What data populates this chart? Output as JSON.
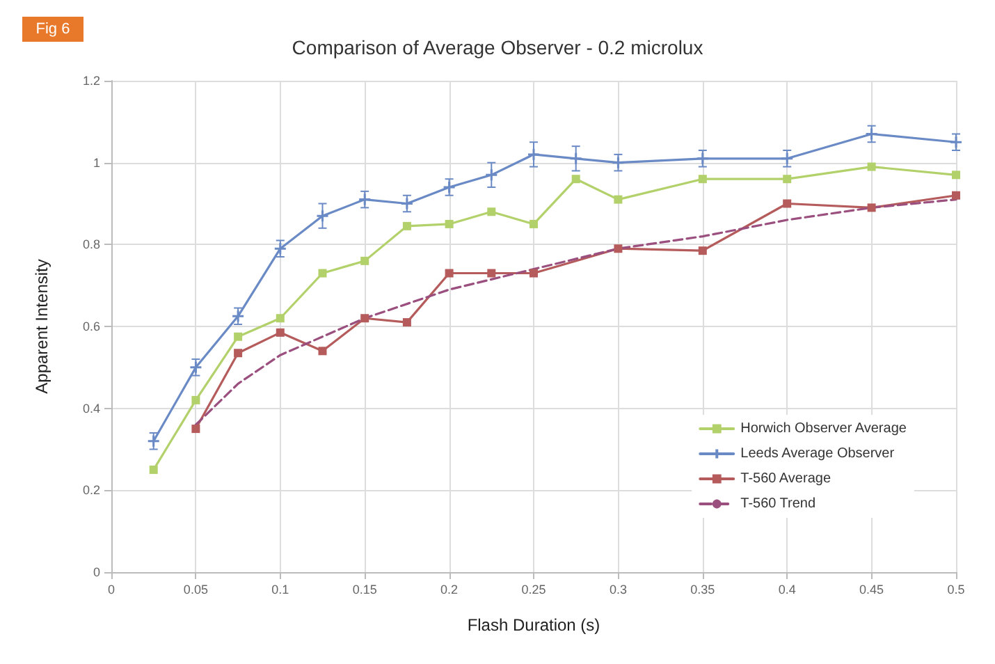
{
  "chart_data": {
    "type": "line",
    "title": "Comparison of Average Observer - 0.2 microlux",
    "xlabel": "Flash Duration (s)",
    "ylabel": "Apparent Intensity",
    "annotations": [
      "Fig 6"
    ],
    "xlim": [
      0,
      0.5
    ],
    "xticks": [
      0,
      0.05,
      0.1,
      0.15,
      0.2,
      0.25,
      0.3,
      0.35,
      0.4,
      0.45,
      0.5
    ],
    "ylim": [
      0,
      1.2
    ],
    "yticks": [
      0,
      0.2,
      0.4,
      0.6,
      0.8,
      1,
      1.2
    ],
    "grid": true,
    "legend": "right",
    "series": [
      {
        "name": "Horwich Observer Average",
        "color": "#b3d16a",
        "marker": "square",
        "x": [
          0.025,
          0.05,
          0.075,
          0.1,
          0.125,
          0.15,
          0.175,
          0.2,
          0.225,
          0.25,
          0.275,
          0.3,
          0.35,
          0.4,
          0.45,
          0.5
        ],
        "values": [
          0.25,
          0.42,
          0.575,
          0.62,
          0.73,
          0.76,
          0.845,
          0.85,
          0.88,
          0.85,
          0.96,
          0.91,
          0.96,
          0.96,
          0.99,
          0.97
        ]
      },
      {
        "name": "Leeds Average Observer",
        "color": "#6a8ac6",
        "marker": "cross",
        "x": [
          0.025,
          0.05,
          0.075,
          0.1,
          0.125,
          0.15,
          0.175,
          0.2,
          0.225,
          0.25,
          0.275,
          0.3,
          0.35,
          0.4,
          0.45,
          0.5
        ],
        "values": [
          0.32,
          0.5,
          0.625,
          0.79,
          0.87,
          0.91,
          0.9,
          0.94,
          0.97,
          1.02,
          1.01,
          1.0,
          1.01,
          1.01,
          1.07,
          1.05
        ],
        "errors": [
          0.02,
          0.02,
          0.02,
          0.02,
          0.03,
          0.02,
          0.02,
          0.02,
          0.03,
          0.03,
          0.03,
          0.02,
          0.02,
          0.02,
          0.02,
          0.02
        ]
      },
      {
        "name": "T-560 Average",
        "color": "#b55b5b",
        "marker": "square",
        "x": [
          0.05,
          0.075,
          0.1,
          0.125,
          0.15,
          0.175,
          0.2,
          0.225,
          0.25,
          0.3,
          0.35,
          0.4,
          0.45,
          0.5
        ],
        "values": [
          0.35,
          0.535,
          0.585,
          0.54,
          0.62,
          0.61,
          0.73,
          0.73,
          0.73,
          0.79,
          0.785,
          0.9,
          0.89,
          0.92
        ]
      },
      {
        "name": "T-560 Trend",
        "color": "#9a4f7e",
        "marker": "none",
        "line_style": "dashed",
        "x": [
          0.05,
          0.075,
          0.1,
          0.15,
          0.2,
          0.25,
          0.3,
          0.35,
          0.4,
          0.45,
          0.5
        ],
        "values": [
          0.36,
          0.46,
          0.53,
          0.62,
          0.69,
          0.74,
          0.79,
          0.82,
          0.86,
          0.89,
          0.91
        ]
      }
    ]
  }
}
